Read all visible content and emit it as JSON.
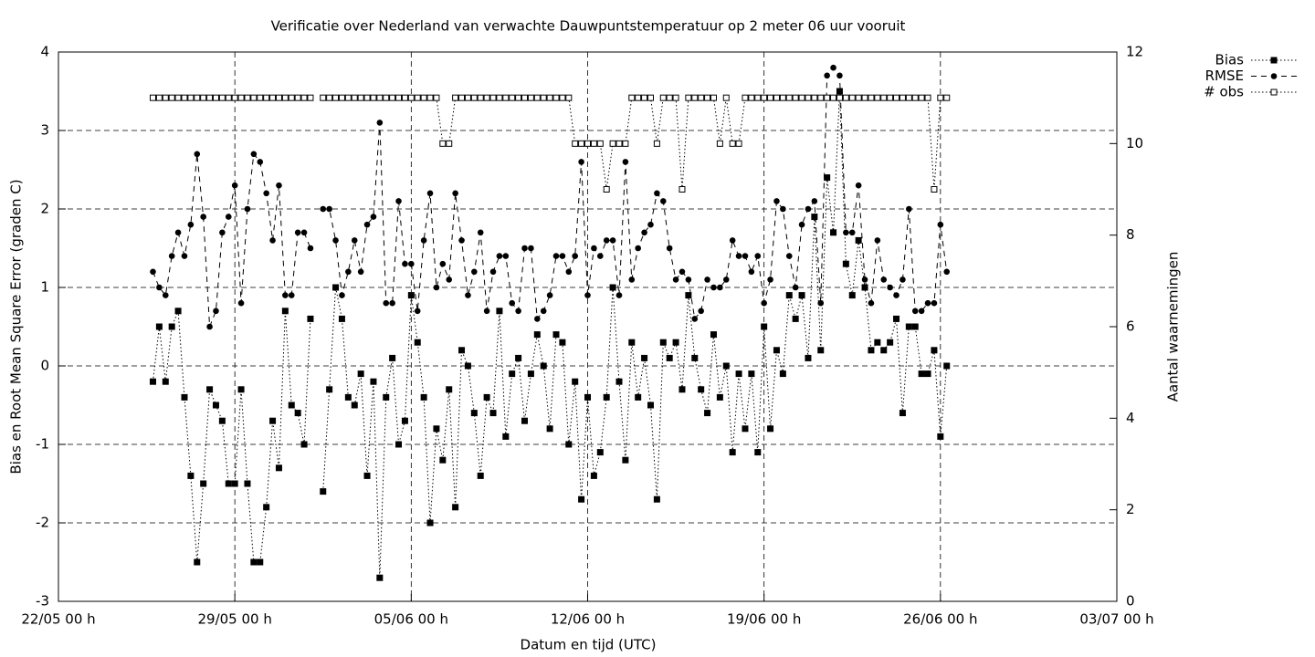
{
  "chart_data": {
    "type": "line",
    "title": "Verificatie over Nederland van verwachte Dauwpuntstemperatuur op 2 meter 06 uur vooruit",
    "xlabel": "Datum en tijd (UTC)",
    "ylabel": "Bias en Root Mean Square Error (graden C)",
    "y2label": "Aantal waarnemingen",
    "x": [
      "25/05 18 h",
      "26/05 00 h",
      "26/05 06 h",
      "26/05 12 h",
      "26/05 18 h",
      "27/05 00 h",
      "27/05 06 h",
      "27/05 12 h",
      "27/05 18 h",
      "28/05 00 h",
      "28/05 06 h",
      "28/05 12 h",
      "28/05 18 h",
      "29/05 00 h",
      "29/05 06 h",
      "29/05 12 h",
      "29/05 18 h",
      "30/05 00 h",
      "30/05 06 h",
      "30/05 12 h",
      "30/05 18 h",
      "31/05 00 h",
      "31/05 06 h",
      "31/05 12 h",
      "31/05 18 h",
      "01/06 00 h",
      "01/06 06 h",
      "01/06 12 h",
      "01/06 18 h",
      "02/06 00 h",
      "02/06 06 h",
      "02/06 12 h",
      "02/06 18 h",
      "03/06 00 h",
      "03/06 06 h",
      "03/06 12 h",
      "03/06 18 h",
      "04/06 00 h",
      "04/06 06 h",
      "04/06 12 h",
      "04/06 18 h",
      "05/06 00 h",
      "05/06 06 h",
      "05/06 12 h",
      "05/06 18 h",
      "06/06 00 h",
      "06/06 06 h",
      "06/06 12 h",
      "06/06 18 h",
      "07/06 00 h",
      "07/06 06 h",
      "07/06 12 h",
      "07/06 18 h",
      "08/06 00 h",
      "08/06 06 h",
      "08/06 12 h",
      "08/06 18 h",
      "09/06 00 h",
      "09/06 06 h",
      "09/06 12 h",
      "09/06 18 h",
      "10/06 00 h",
      "10/06 06 h",
      "10/06 12 h",
      "10/06 18 h",
      "11/06 00 h",
      "11/06 06 h",
      "11/06 12 h",
      "11/06 18 h",
      "12/06 00 h",
      "12/06 06 h",
      "12/06 12 h",
      "12/06 18 h",
      "13/06 00 h",
      "13/06 06 h",
      "13/06 12 h",
      "13/06 18 h",
      "14/06 00 h",
      "14/06 06 h",
      "14/06 12 h",
      "14/06 18 h",
      "15/06 00 h",
      "15/06 06 h",
      "15/06 12 h",
      "15/06 18 h",
      "16/06 00 h",
      "16/06 06 h",
      "16/06 12 h",
      "16/06 18 h",
      "17/06 00 h",
      "17/06 06 h",
      "17/06 12 h",
      "17/06 18 h",
      "18/06 00 h",
      "18/06 06 h",
      "18/06 12 h",
      "18/06 18 h",
      "19/06 00 h",
      "19/06 06 h",
      "19/06 12 h",
      "19/06 18 h",
      "20/06 00 h",
      "20/06 06 h",
      "20/06 12 h",
      "20/06 18 h",
      "21/06 00 h",
      "21/06 06 h",
      "21/06 12 h",
      "21/06 18 h",
      "22/06 00 h",
      "22/06 06 h",
      "22/06 12 h",
      "22/06 18 h",
      "23/06 00 h",
      "23/06 06 h",
      "23/06 12 h",
      "23/06 18 h",
      "24/06 00 h",
      "24/06 06 h",
      "24/06 12 h",
      "24/06 18 h",
      "25/06 00 h",
      "25/06 06 h",
      "25/06 12 h",
      "25/06 18 h",
      "26/06 00 h",
      "26/06 06 h"
    ],
    "series": [
      {
        "name": "Bias",
        "color": "#000000",
        "line_style": "dotted",
        "marker": "filled-square",
        "values": [
          -0.2,
          0.5,
          -0.2,
          0.5,
          0.7,
          -0.4,
          -1.4,
          -2.5,
          -1.5,
          -0.3,
          -0.5,
          -0.7,
          -1.5,
          -1.5,
          -0.3,
          -1.5,
          -2.5,
          -2.5,
          -1.8,
          -0.7,
          -1.3,
          0.7,
          -0.5,
          -0.6,
          -1.0,
          0.6,
          null,
          -1.6,
          -0.3,
          1.0,
          0.6,
          -0.4,
          -0.5,
          -0.1,
          -1.4,
          -0.2,
          -2.7,
          -0.4,
          0.1,
          -1.0,
          -0.7,
          0.9,
          0.3,
          -0.4,
          -2.0,
          -0.8,
          -1.2,
          -0.3,
          -1.8,
          0.2,
          0.0,
          -0.6,
          -1.4,
          -0.4,
          -0.6,
          0.7,
          -0.9,
          -0.1,
          0.1,
          -0.7,
          -0.1,
          0.4,
          0.0,
          -0.8,
          0.4,
          0.3,
          -1.0,
          -0.2,
          -1.7,
          -0.4,
          -1.4,
          -1.1,
          -0.4,
          1.0,
          -0.2,
          -1.2,
          0.3,
          -0.4,
          0.1,
          -0.5,
          -1.7,
          0.3,
          0.1,
          0.3,
          -0.3,
          0.9,
          0.1,
          -0.3,
          -0.6,
          0.4,
          -0.4,
          0.0,
          -1.1,
          -0.1,
          -0.8,
          -0.1,
          -1.1,
          0.5,
          -0.8,
          0.2,
          -0.1,
          0.9,
          0.6,
          0.9,
          0.1,
          1.9,
          0.2,
          2.4,
          1.7,
          3.5,
          1.3,
          0.9,
          1.6,
          1.0,
          0.2,
          0.3,
          0.2,
          0.3,
          0.6,
          -0.6,
          0.5,
          0.5,
          -0.1,
          -0.1,
          0.2,
          -0.9,
          0.0
        ]
      },
      {
        "name": "RMSE",
        "color": "#000000",
        "line_style": "dashed",
        "marker": "filled-circle",
        "values": [
          1.2,
          1.0,
          0.9,
          1.4,
          1.7,
          1.4,
          1.8,
          2.7,
          1.9,
          0.5,
          0.7,
          1.7,
          1.9,
          2.3,
          0.8,
          2.0,
          2.7,
          2.6,
          2.2,
          1.6,
          2.3,
          0.9,
          0.9,
          1.7,
          1.7,
          1.5,
          null,
          2.0,
          2.0,
          1.6,
          0.9,
          1.2,
          1.6,
          1.2,
          1.8,
          1.9,
          3.1,
          0.8,
          0.8,
          2.1,
          1.3,
          1.3,
          0.7,
          1.6,
          2.2,
          1.0,
          1.3,
          1.1,
          2.2,
          1.6,
          0.9,
          1.2,
          1.7,
          0.7,
          1.2,
          1.4,
          1.4,
          0.8,
          0.7,
          1.5,
          1.5,
          0.6,
          0.7,
          0.9,
          1.4,
          1.4,
          1.2,
          1.4,
          2.6,
          0.9,
          1.5,
          1.4,
          1.6,
          1.6,
          0.9,
          2.6,
          1.1,
          1.5,
          1.7,
          1.8,
          2.2,
          2.1,
          1.5,
          1.1,
          1.2,
          1.1,
          0.6,
          0.7,
          1.1,
          1.0,
          1.0,
          1.1,
          1.6,
          1.4,
          1.4,
          1.2,
          1.4,
          0.8,
          1.1,
          2.1,
          2.0,
          1.4,
          1.0,
          1.8,
          2.0,
          2.1,
          0.8,
          3.7,
          3.8,
          3.7,
          1.7,
          1.7,
          2.3,
          1.1,
          0.8,
          1.6,
          1.1,
          1.0,
          0.9,
          1.1,
          2.0,
          0.7,
          0.7,
          0.8,
          0.8,
          1.8,
          1.2
        ]
      },
      {
        "name": "# obs",
        "color": "#000000",
        "line_style": "dotted",
        "marker": "open-square",
        "axis": "y2",
        "values": [
          11,
          11,
          11,
          11,
          11,
          11,
          11,
          11,
          11,
          11,
          11,
          11,
          11,
          11,
          11,
          11,
          11,
          11,
          11,
          11,
          11,
          11,
          11,
          11,
          11,
          11,
          null,
          11,
          11,
          11,
          11,
          11,
          11,
          11,
          11,
          11,
          11,
          11,
          11,
          11,
          11,
          11,
          11,
          11,
          11,
          11,
          10,
          10,
          11,
          11,
          11,
          11,
          11,
          11,
          11,
          11,
          11,
          11,
          11,
          11,
          11,
          11,
          11,
          11,
          11,
          11,
          11,
          10,
          10,
          10,
          10,
          10,
          9,
          10,
          10,
          10,
          11,
          11,
          11,
          11,
          10,
          11,
          11,
          11,
          9,
          11,
          11,
          11,
          11,
          11,
          10,
          11,
          10,
          10,
          11,
          11,
          11,
          11,
          11,
          11,
          11,
          11,
          11,
          11,
          11,
          11,
          11,
          11,
          11,
          11,
          11,
          11,
          11,
          11,
          11,
          11,
          11,
          11,
          11,
          11,
          11,
          11,
          11,
          11,
          9,
          11,
          11
        ]
      }
    ],
    "xlim": [
      "22/05 00 h",
      "03/07 00 h"
    ],
    "xticks": [
      "22/05 00 h",
      "29/05 00 h",
      "05/06 00 h",
      "12/06 00 h",
      "19/06 00 h",
      "26/06 00 h",
      "03/07 00 h"
    ],
    "ylim": [
      -3,
      4
    ],
    "yticks": [
      -3,
      -2,
      -1,
      0,
      1,
      2,
      3,
      4
    ],
    "y2lim": [
      0,
      12
    ],
    "y2ticks": [
      0,
      2,
      4,
      6,
      8,
      10,
      12
    ],
    "grid": true,
    "legend": "outside-top-right"
  }
}
